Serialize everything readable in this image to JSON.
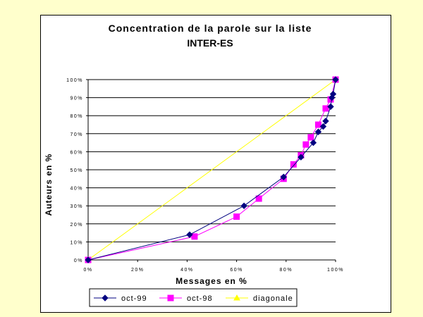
{
  "chart_data": {
    "type": "line",
    "title": "Concentration de la parole sur la liste",
    "subtitle": "INTER-ES",
    "xlabel": "Messages en %",
    "ylabel": "Auteurs en %",
    "xlim": [
      0,
      100
    ],
    "ylim": [
      0,
      100
    ],
    "x_ticks": [
      "0%",
      "20%",
      "40%",
      "60%",
      "80%",
      "100%"
    ],
    "y_ticks": [
      "0%",
      "10%",
      "20%",
      "30%",
      "40%",
      "50%",
      "60%",
      "70%",
      "80%",
      "90%",
      "100%"
    ],
    "grid": "horizontal",
    "legend_position": "bottom",
    "series": [
      {
        "name": "oct-99",
        "color": "#000080",
        "marker": "diamond",
        "points": [
          [
            0,
            0
          ],
          [
            41,
            14
          ],
          [
            63,
            30
          ],
          [
            79,
            46
          ],
          [
            86,
            57
          ],
          [
            91,
            65
          ],
          [
            93,
            71
          ],
          [
            95,
            74
          ],
          [
            96,
            77
          ],
          [
            98,
            85
          ],
          [
            98.5,
            90
          ],
          [
            99,
            92
          ],
          [
            100,
            100
          ]
        ]
      },
      {
        "name": "oct-98",
        "color": "#ff00ff",
        "marker": "square",
        "points": [
          [
            0,
            0
          ],
          [
            43,
            13
          ],
          [
            60,
            24
          ],
          [
            69,
            34
          ],
          [
            79,
            45
          ],
          [
            83,
            53
          ],
          [
            86,
            58
          ],
          [
            88,
            64
          ],
          [
            90,
            68
          ],
          [
            93,
            75
          ],
          [
            96,
            84
          ],
          [
            98,
            89
          ],
          [
            100,
            100
          ]
        ]
      },
      {
        "name": "diagonale",
        "color": "#ffff00",
        "marker": "triangle",
        "points": [
          [
            0,
            0
          ],
          [
            100,
            100
          ]
        ]
      }
    ]
  }
}
